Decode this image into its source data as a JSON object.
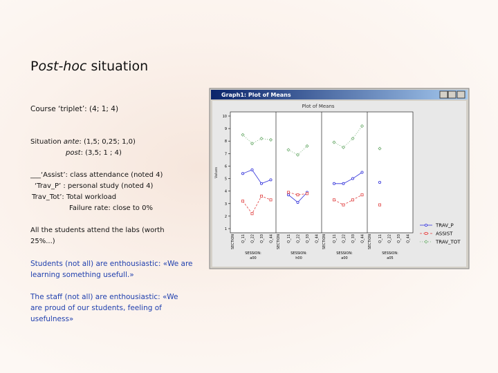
{
  "slide": {
    "title": {
      "upright": "P",
      "italic": "ost-hoc",
      "rest": " situation"
    },
    "triplet": "Course ‘triplet’:  (4; 1; 4)",
    "ante": {
      "lead": "Situation  ",
      "italic": "ante",
      "rest": ": (1,5; 0,25; 1,0)"
    },
    "post": {
      "italic": "post",
      "rest": ": (3,5;    1 ;   4)"
    },
    "notes": [
      "___‘Assist’: class attendance (noted 4)",
      "‘Trav_P’ : personal study (noted 4)",
      "Trav_Tot’: Total workload",
      "Failure rate: close  to 0%"
    ],
    "labs": "All the students attend the labs (worth 25%...)",
    "students": "Students (not all) are enthousiastic: «We are learning something usefull.»",
    "staff": "The staff (not all) are enthousiastic: «We are proud of  our students, feeling of usefulness»"
  },
  "chart_data": {
    "type": "line",
    "window_title": "Graph1: Plot of Means",
    "title": "Plot of Means",
    "ylabel": "Values",
    "x_factor": "SECTION",
    "categories": [
      "Q_11",
      "Q_22",
      "Q_33",
      "Q_44"
    ],
    "panels": [
      {
        "factor": "SESSION:",
        "level": "a00"
      },
      {
        "factor": "SESSION:",
        "level": "h00"
      },
      {
        "factor": "SESSION:",
        "level": "a00"
      },
      {
        "factor": "SESSION:",
        "level": "a05"
      }
    ],
    "ylim": [
      1,
      10
    ],
    "yticks": [
      1,
      2,
      3,
      4,
      5,
      6,
      7,
      8,
      9,
      10
    ],
    "series": [
      {
        "name": "TRAV_P",
        "color": "#2b2bd9",
        "marker": "circle",
        "dash": "solid",
        "values": [
          [
            5.4,
            5.7,
            4.6,
            4.9
          ],
          [
            3.7,
            3.1,
            3.9,
            null
          ],
          [
            4.6,
            4.6,
            5.0,
            5.5
          ],
          [
            4.7,
            null,
            null,
            null
          ]
        ]
      },
      {
        "name": "ASSIST",
        "color": "#e04040",
        "marker": "square",
        "dash": "dashed",
        "values": [
          [
            3.2,
            2.2,
            3.6,
            3.3
          ],
          [
            3.9,
            3.7,
            3.8,
            null
          ],
          [
            3.3,
            2.9,
            3.3,
            3.7
          ],
          [
            2.9,
            null,
            null,
            null
          ]
        ]
      },
      {
        "name": "TRAV_TOT",
        "color": "#6aaa6a",
        "marker": "diamond",
        "dash": "dotted",
        "values": [
          [
            8.5,
            7.8,
            8.2,
            8.1
          ],
          [
            7.3,
            6.9,
            7.6,
            null
          ],
          [
            7.9,
            7.5,
            8.2,
            9.2
          ],
          [
            7.4,
            null,
            null,
            null
          ]
        ]
      }
    ]
  }
}
